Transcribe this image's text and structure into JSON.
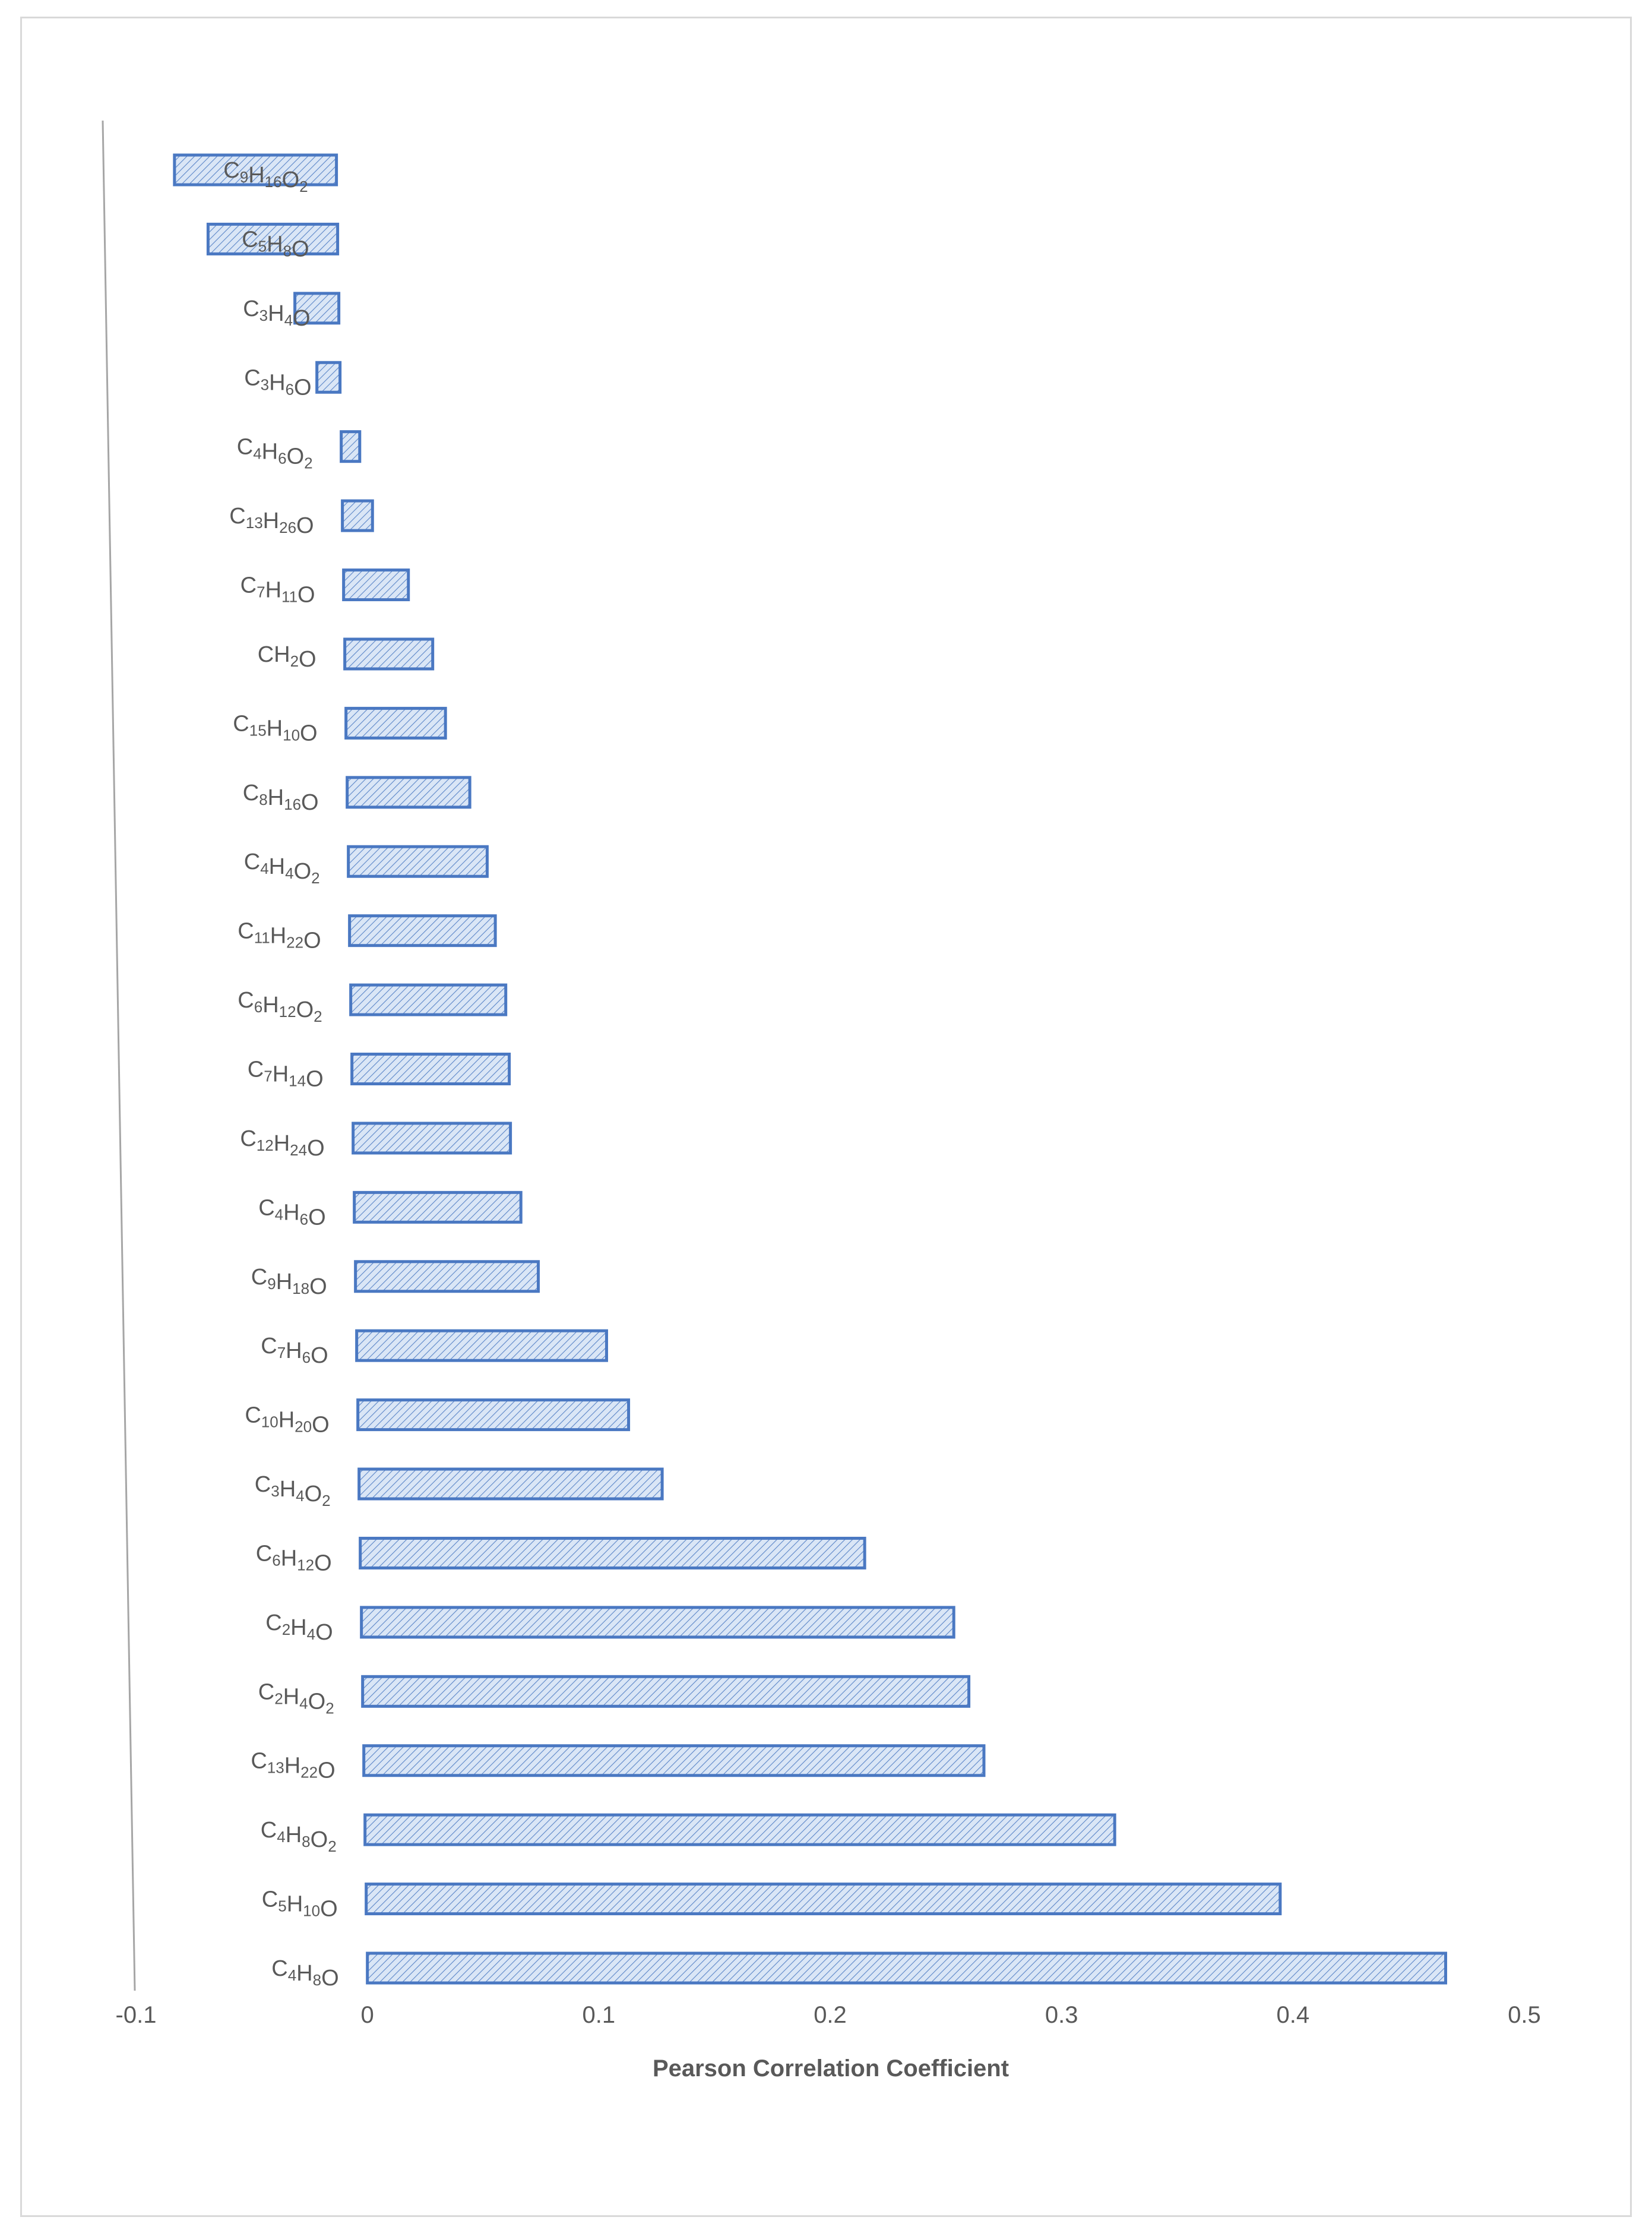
{
  "chart_data": {
    "type": "bar",
    "orientation": "horizontal",
    "categories": [
      "C9H16O2",
      "C5H8O",
      "C3H4O",
      "C3H6O",
      "C4H6O2",
      "C13H26O",
      "C7H11O",
      "CH2O",
      "C15H10O",
      "C8H16O",
      "C4H4O2",
      "C11H22O",
      "C6H12O2",
      "C7H14O",
      "C12H24O",
      "C4H6O",
      "C9H18O",
      "C7H6O",
      "C10H20O",
      "C3H4O2",
      "C6H12O",
      "C2H4O",
      "C2H4O2",
      "C13H22O",
      "C4H8O2",
      "C5H10O",
      "C4H8O"
    ],
    "values": [
      -0.07,
      -0.056,
      -0.019,
      -0.01,
      0.008,
      0.013,
      0.028,
      0.038,
      0.043,
      0.053,
      0.06,
      0.063,
      0.067,
      0.068,
      0.068,
      0.072,
      0.079,
      0.108,
      0.117,
      0.131,
      0.218,
      0.256,
      0.262,
      0.268,
      0.324,
      0.395,
      0.466
    ],
    "xlim": [
      -0.1,
      0.5
    ],
    "xticks": [
      "-0.1",
      "0",
      "0.1",
      "0.2",
      "0.3",
      "0.4",
      "0.5"
    ],
    "xlabel": "Pearson Correlation Coefficient",
    "ylabel": "",
    "title": "",
    "grid": false,
    "legend": "none",
    "bar_fill": "#dae6f6",
    "bar_stroke": "#4a78c2",
    "axis_color": "#a6a6a6",
    "text_color": "#595959"
  }
}
